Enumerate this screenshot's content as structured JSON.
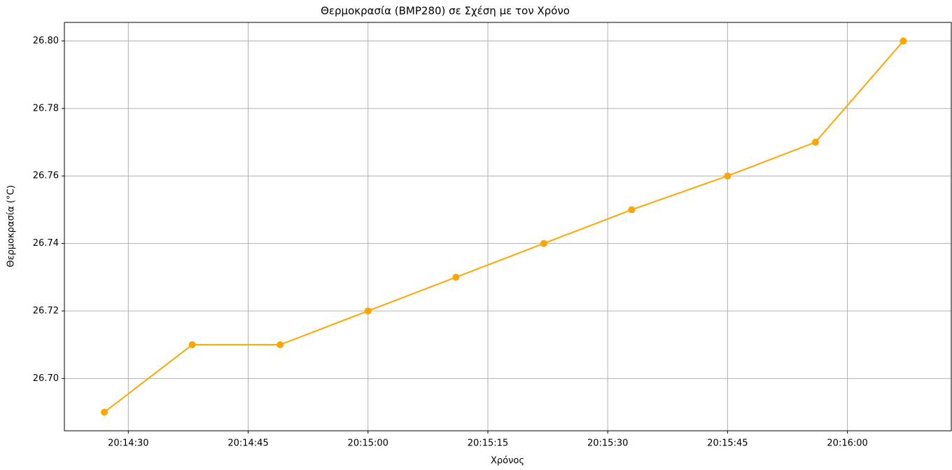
{
  "chart_data": {
    "type": "line",
    "title": "Θερμοκρασία (BMP280) σε Σχέση με τον Χρόνο",
    "x_label": "Χρόνος",
    "y_label": "Θερμοκρασία (°C)",
    "x": [
      "20:14:27",
      "20:14:38",
      "20:14:49",
      "20:15:00",
      "20:15:11",
      "20:15:22",
      "20:15:33",
      "20:15:45",
      "20:15:56",
      "20:16:07"
    ],
    "series": [
      {
        "name": "BMP280",
        "color": "#ffa500",
        "values": [
          26.69,
          26.71,
          26.71,
          26.72,
          26.73,
          26.74,
          26.75,
          26.76,
          26.77,
          26.8
        ]
      }
    ],
    "xlim": [
      "20:14:22",
      "20:16:13"
    ],
    "xticks": [
      "20:14:30",
      "20:14:45",
      "20:15:00",
      "20:15:15",
      "20:15:30",
      "20:15:45",
      "20:16:00"
    ],
    "ylim": [
      26.6845,
      26.8055
    ],
    "yticks": [
      {
        "value": 26.7,
        "label": "26.70"
      },
      26.72,
      26.74,
      26.76,
      26.78,
      {
        "value": 26.8,
        "label": "26.80"
      }
    ],
    "grid": true
  }
}
